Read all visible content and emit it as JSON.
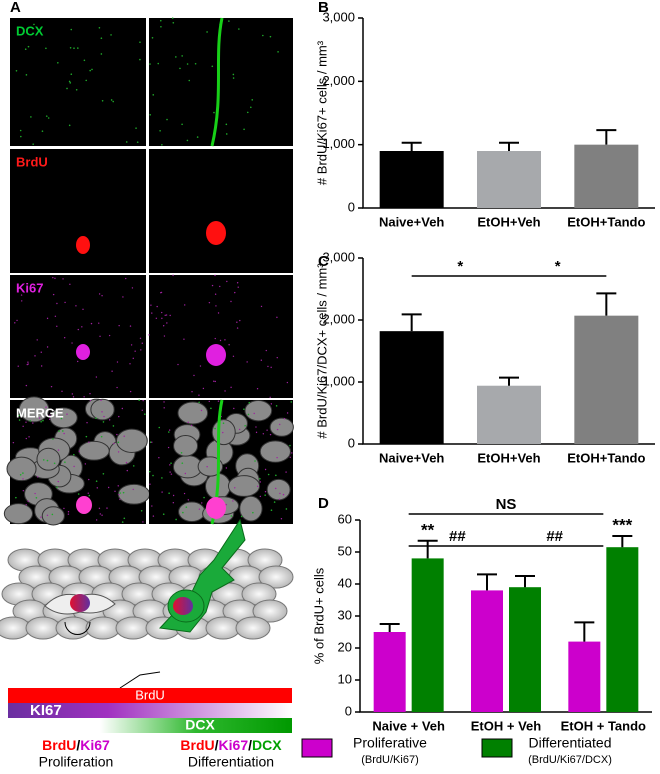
{
  "panel_a": {
    "label": "A",
    "image_labels": [
      "DCX",
      "BrdU",
      "Ki67",
      "MERGE"
    ],
    "bar_labels": [
      "BrdU",
      "KI67",
      "DCX"
    ],
    "captions": [
      {
        "markers": [
          "BrdU",
          "/",
          "Ki67"
        ],
        "label": "Proliferation"
      },
      {
        "markers": [
          "BrdU",
          "/",
          "Ki67",
          "/",
          "DCX"
        ],
        "label": "Differentiation"
      }
    ]
  },
  "chart_data": [
    {
      "type": "bar",
      "panel": "B",
      "y_label": "# BrdU/Ki67+ cells / mm³",
      "categories": [
        "Naive+Veh",
        "EtOH+Veh",
        "EtOH+Tando"
      ],
      "values": [
        900,
        900,
        1000
      ],
      "errors": [
        130,
        130,
        230
      ],
      "colors": [
        "#000000",
        "#a7a9ac",
        "#808080"
      ],
      "ylim": [
        0,
        3000
      ],
      "yticks": [
        0,
        {
          "value": 1000,
          "label": "1,000"
        },
        {
          "value": 2000,
          "label": "2,000"
        },
        {
          "value": 3000,
          "label": "3,000"
        }
      ]
    },
    {
      "type": "bar",
      "panel": "C",
      "y_label": "# BrdU/Ki67/DCX+ cells / mm³",
      "categories": [
        "Naive+Veh",
        "EtOH+Veh",
        "EtOH+Tando"
      ],
      "values": [
        1820,
        940,
        2070
      ],
      "errors": [
        270,
        130,
        360
      ],
      "colors": [
        "#000000",
        "#a7a9ac",
        "#808080"
      ],
      "ylim": [
        0,
        3000
      ],
      "yticks": [
        0,
        {
          "value": 1000,
          "label": "1,000"
        },
        {
          "value": 2000,
          "label": "2,000"
        },
        {
          "value": 3000,
          "label": "3,000"
        }
      ],
      "brackets": [
        {
          "label": "*",
          "between": [
            "Naive+Veh",
            "EtOH+Veh"
          ]
        },
        {
          "label": "*",
          "between": [
            "EtOH+Veh",
            "EtOH+Tando"
          ]
        }
      ]
    },
    {
      "type": "grouped_bar",
      "panel": "D",
      "y_label": "% of BrdU+ cells",
      "categories": [
        "Naive + Veh",
        "EtOH + Veh",
        "EtOH + Tando"
      ],
      "series": [
        {
          "name": "Proliferative",
          "note": "(BrdU/Ki67)",
          "color": "#cc00cc",
          "values": [
            25,
            38,
            22
          ],
          "errors": [
            2.5,
            5,
            6
          ]
        },
        {
          "name": "Differentiated",
          "note": "(BrdU/Ki67/DCX)",
          "color": "#008000",
          "values": [
            48,
            39,
            51.5
          ],
          "errors": [
            5.5,
            3.5,
            3.5
          ]
        }
      ],
      "ylim": [
        0,
        60
      ],
      "yticks": [
        0,
        10,
        20,
        30,
        40,
        50,
        60
      ],
      "stars": [
        {
          "label": "**",
          "series": "Differentiated",
          "category": "Naive + Veh"
        },
        {
          "label": "***",
          "series": "Differentiated",
          "category": "EtOH + Tando"
        }
      ],
      "brackets": [
        {
          "label": "##",
          "between": [
            "Naive + Veh",
            "EtOH + Veh"
          ]
        },
        {
          "label": "##",
          "between": [
            "EtOH + Veh",
            "EtOH + Tando"
          ]
        },
        {
          "label": "NS",
          "between": [
            "Naive + Veh",
            "EtOH + Tando"
          ]
        }
      ]
    }
  ]
}
